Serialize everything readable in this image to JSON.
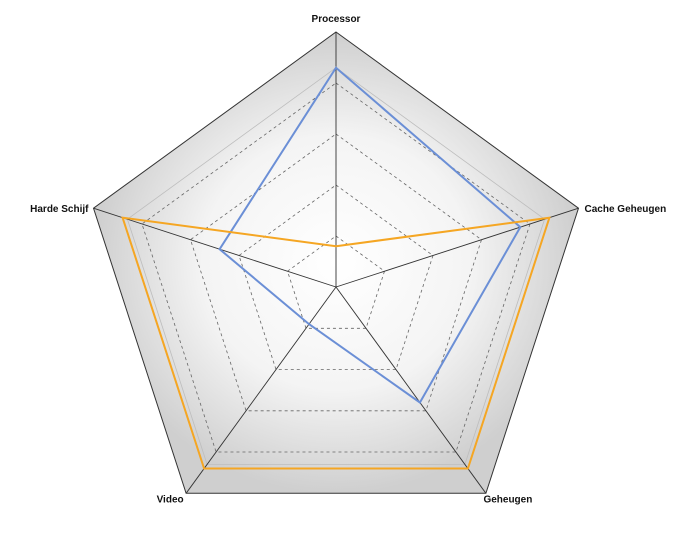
{
  "chart_data": {
    "type": "radar",
    "title": "",
    "axes": [
      "Processor",
      "Cache Geheugen",
      "Geheugen",
      "Video",
      "Harde Schijf"
    ],
    "rmax": 5,
    "grid_levels": [
      1,
      2,
      3,
      4
    ],
    "grid": true,
    "legend": "none",
    "series": [
      {
        "color": "#6b8fd6",
        "values": [
          4.3,
          3.8,
          2.8,
          0.9,
          2.4
        ]
      },
      {
        "color": "#f5a623",
        "values": [
          0.8,
          4.4,
          4.4,
          4.4,
          4.4
        ]
      }
    ],
    "colors": {
      "outer_band": "#c8c8c8",
      "inner_fill": "#ffffff",
      "axis_line": "#333333",
      "grid_line": "#666666"
    }
  }
}
